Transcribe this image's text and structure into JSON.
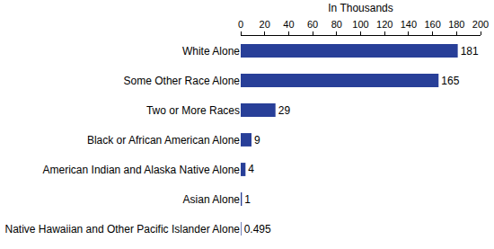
{
  "chart_data": {
    "type": "bar",
    "orientation": "horizontal",
    "x_label": "In Thousands",
    "categories": [
      "White Alone",
      "Some Other Race Alone",
      "Two or More Races",
      "Black or African American Alone",
      "American Indian and Alaska Native Alone",
      "Asian Alone",
      "Native Hawaiian and Other Pacific Islander Alone"
    ],
    "values": [
      181,
      165,
      29,
      9,
      4,
      1,
      0.495
    ],
    "color": "#283f98",
    "xlim": [
      0,
      200
    ],
    "xticks": [
      0,
      20,
      40,
      60,
      80,
      100,
      120,
      140,
      160,
      180,
      200
    ],
    "grid": false,
    "data_labels": true
  }
}
